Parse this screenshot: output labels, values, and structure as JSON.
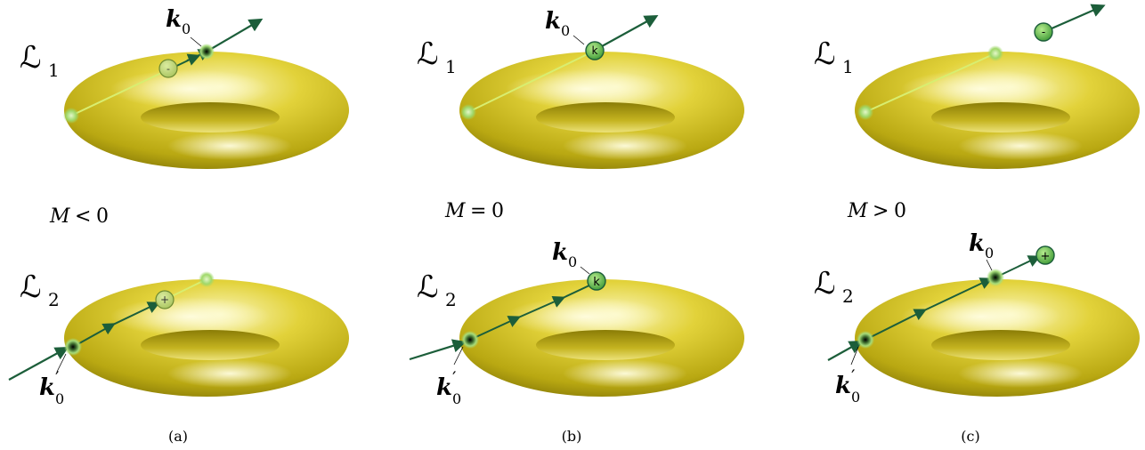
{
  "figure": {
    "panels": [
      {
        "id": "a",
        "caption": "(a)",
        "condition": {
          "symbol": "M",
          "relation": "<",
          "value": "0"
        },
        "top": {
          "label": "ℒ",
          "subscript": "1",
          "points": [
            {
              "label": "k",
              "subscript": "0",
              "kind": "dot"
            },
            {
              "label": "-",
              "kind": "charge-minus",
              "faded": true
            }
          ]
        },
        "bottom": {
          "label": "ℒ",
          "subscript": "2",
          "points": [
            {
              "label": "k",
              "subscript": "0",
              "prime": "′",
              "kind": "dot"
            },
            {
              "label": "+",
              "kind": "charge-plus",
              "faded": true
            }
          ]
        }
      },
      {
        "id": "b",
        "caption": "(b)",
        "condition": {
          "symbol": "M",
          "relation": "=",
          "value": "0"
        },
        "top": {
          "label": "ℒ",
          "subscript": "1",
          "points": [
            {
              "label": "k",
              "subscript": "0",
              "kind": "charge-minus"
            }
          ]
        },
        "bottom": {
          "label": "ℒ",
          "subscript": "2",
          "points": [
            {
              "label": "k",
              "subscript": "0",
              "kind": "charge-plus"
            },
            {
              "label": "k",
              "subscript": "0",
              "prime": "′",
              "kind": "dot"
            }
          ]
        }
      },
      {
        "id": "c",
        "caption": "(c)",
        "condition": {
          "symbol": "M",
          "relation": ">",
          "value": "0"
        },
        "top": {
          "label": "ℒ",
          "subscript": "1",
          "points": [
            {
              "label": "-",
              "kind": "charge-minus"
            }
          ]
        },
        "bottom": {
          "label": "ℒ",
          "subscript": "2",
          "points": [
            {
              "label": "k",
              "subscript": "0",
              "kind": "dot"
            },
            {
              "label": "+",
              "kind": "charge-plus"
            },
            {
              "label": "k",
              "subscript": "0",
              "prime": "′",
              "kind": "dot"
            }
          ]
        }
      }
    ]
  },
  "colors": {
    "torus_light": "#f2ec8c",
    "torus_mid": "#d6c428",
    "torus_dark": "#8c7e06",
    "arrow": "#1c5e3a",
    "charge_fill": "#5cb84c",
    "charge_faded": "#b9d47a",
    "glow": "#a8de78",
    "text": "#000000"
  }
}
